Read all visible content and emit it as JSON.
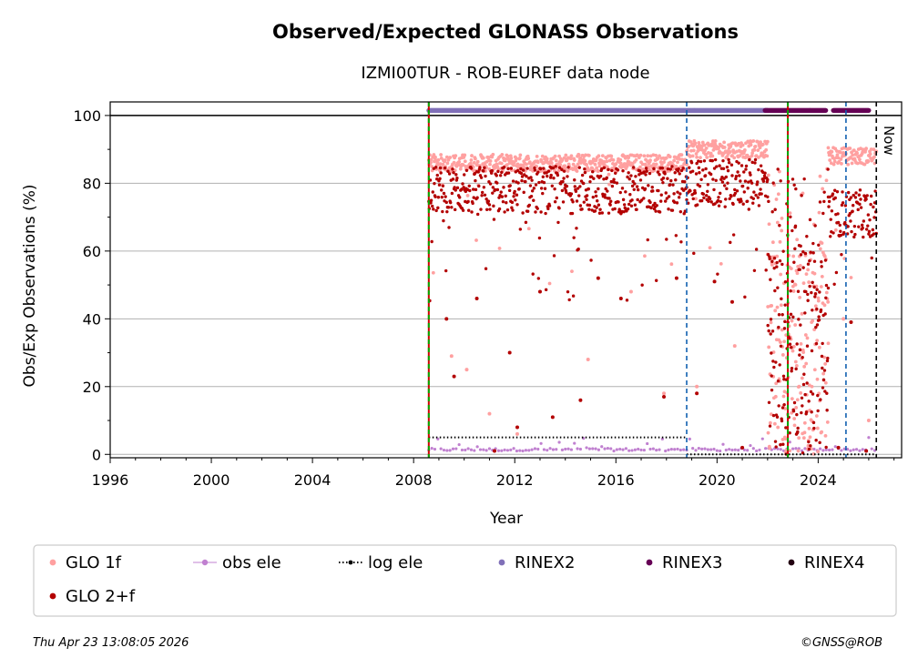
{
  "chart_data": {
    "type": "scatter",
    "title": "Observed/Expected GLONASS Observations",
    "subtitle": "IZMI00TUR - ROB-EUREF data node",
    "xlabel": "Year",
    "ylabel": "Obs/Exp Observations (%)",
    "xlim": [
      1996,
      2027.3
    ],
    "ylim": [
      -1,
      104
    ],
    "x_ticks": [
      1996,
      2000,
      2004,
      2008,
      2012,
      2016,
      2020,
      2024
    ],
    "x_tick_labels": [
      "1996",
      "2000",
      "2004",
      "2008",
      "2012",
      "2016",
      "2020",
      "2024"
    ],
    "y_ticks": [
      0,
      20,
      40,
      60,
      80,
      100
    ],
    "y_tick_labels": [
      "0",
      "20",
      "40",
      "60",
      "80",
      "100"
    ],
    "grid": "horizontal",
    "reference_line": 100,
    "legend_position": "bottom",
    "series": [
      {
        "name": "GLO 1f",
        "color": "#ffa0a0",
        "marker": "dot",
        "segments": [
          {
            "x_start": 2008.6,
            "x_end": 2018.8,
            "typical": 86,
            "drops": [
              [
                2009.5,
                29
              ],
              [
                2010.1,
                25
              ],
              [
                2011.0,
                12
              ],
              [
                2012.1,
                6
              ],
              [
                2014.9,
                28
              ],
              [
                2016.6,
                48
              ],
              [
                2017.9,
                18
              ]
            ]
          },
          {
            "x_start": 2018.8,
            "x_end": 2022.0,
            "typical": 90,
            "drops": [
              [
                2019.2,
                20
              ],
              [
                2020.7,
                32
              ]
            ]
          },
          {
            "x_start": 2022.0,
            "x_end": 2024.4,
            "typical": 30,
            "drops": []
          },
          {
            "x_start": 2024.4,
            "x_end": 2026.3,
            "typical": 88,
            "drops": [
              [
                2025.0,
                40
              ],
              [
                2026.0,
                10
              ]
            ]
          }
        ]
      },
      {
        "name": "GLO 2+f",
        "color": "#b30000",
        "marker": "dot",
        "segments": [
          {
            "x_start": 2008.6,
            "x_end": 2018.8,
            "typical": 78,
            "drops": [
              [
                2009.3,
                40
              ],
              [
                2009.6,
                23
              ],
              [
                2010.5,
                46
              ],
              [
                2011.2,
                1
              ],
              [
                2011.8,
                30
              ],
              [
                2012.1,
                8
              ],
              [
                2013.0,
                48
              ],
              [
                2013.5,
                11
              ],
              [
                2014.6,
                16
              ],
              [
                2015.3,
                52
              ],
              [
                2016.2,
                46
              ],
              [
                2017.9,
                17
              ],
              [
                2018.4,
                52
              ]
            ]
          },
          {
            "x_start": 2018.8,
            "x_end": 2022.0,
            "typical": 80,
            "drops": [
              [
                2019.2,
                18
              ],
              [
                2019.9,
                51
              ],
              [
                2020.6,
                45
              ],
              [
                2021.0,
                2
              ]
            ]
          },
          {
            "x_start": 2022.0,
            "x_end": 2024.4,
            "typical": 25,
            "drops": []
          },
          {
            "x_start": 2024.4,
            "x_end": 2026.3,
            "typical": 71,
            "drops": [
              [
                2024.8,
                2
              ],
              [
                2025.3,
                39
              ],
              [
                2025.9,
                1
              ]
            ]
          }
        ]
      },
      {
        "name": "obs ele",
        "color": "#c080d0",
        "marker": "dot-line",
        "value_note": "elevation cutoff scatter near 0-5",
        "segments": [
          {
            "x_start": 2008.6,
            "x_end": 2026.3,
            "typical": 1
          }
        ]
      },
      {
        "name": "log ele",
        "color": "#000000",
        "marker": "dotted-line",
        "segments": [
          {
            "x_start": 2008.6,
            "x_end": 2018.8,
            "typical": 5
          },
          {
            "x_start": 2018.8,
            "x_end": 2026.3,
            "typical": 0
          }
        ]
      },
      {
        "name": "RINEX2",
        "color": "#8070b8",
        "marker": "dot",
        "segments": [
          {
            "x_start": 2008.6,
            "x_end": 2022.0,
            "typical": 101.5
          }
        ]
      },
      {
        "name": "RINEX3",
        "color": "#660055",
        "marker": "dot",
        "segments": [
          {
            "x_start": 2021.9,
            "x_end": 2024.3,
            "typical": 101.5
          },
          {
            "x_start": 2024.6,
            "x_end": 2026.0,
            "typical": 101.5
          }
        ]
      },
      {
        "name": "RINEX4",
        "color": "#220011",
        "marker": "dot",
        "segments": []
      }
    ],
    "vertical_lines": [
      {
        "x": 2008.6,
        "color": "#00aa00",
        "style": "dashed-red-green"
      },
      {
        "x": 2018.8,
        "color": "#1060b0",
        "style": "dashed"
      },
      {
        "x": 2022.8,
        "color": "#00aa00",
        "style": "dashed-red-green"
      },
      {
        "x": 2025.1,
        "color": "#1060b0",
        "style": "dashed"
      },
      {
        "x": 2026.3,
        "color": "#000000",
        "style": "dashed"
      }
    ],
    "annotations": [
      {
        "text": "Now",
        "x": 2026.3
      }
    ]
  },
  "legend": {
    "items": [
      {
        "label": "GLO 1f",
        "color": "#ffa0a0",
        "kind": "dot"
      },
      {
        "label": "obs ele",
        "color": "#c080d0",
        "kind": "dot-line"
      },
      {
        "label": "log ele",
        "color": "#000000",
        "kind": "dotted-line"
      },
      {
        "label": "RINEX2",
        "color": "#8070b8",
        "kind": "dot"
      },
      {
        "label": "RINEX3",
        "color": "#660055",
        "kind": "dot"
      },
      {
        "label": "RINEX4",
        "color": "#220011",
        "kind": "dot"
      },
      {
        "label": "GLO 2+f",
        "color": "#b30000",
        "kind": "dot"
      }
    ]
  },
  "footer": {
    "timestamp": "Thu Apr 23 13:08:05 2026",
    "credit": "©GNSS@ROB"
  }
}
